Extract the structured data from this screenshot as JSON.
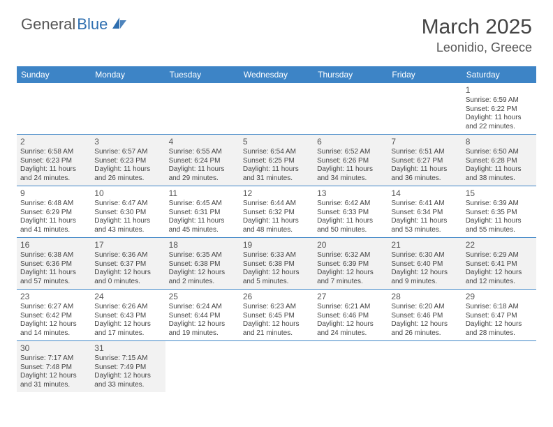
{
  "brand": {
    "part1": "General",
    "part2": "Blue"
  },
  "title": "March 2025",
  "location": "Leonidio, Greece",
  "colors": {
    "header_bg": "#3d84c6",
    "header_text": "#ffffff",
    "shaded_bg": "#f2f2f2",
    "border": "#3d84c6",
    "text": "#444444",
    "brand_accent": "#2f6fb0"
  },
  "day_names": [
    "Sunday",
    "Monday",
    "Tuesday",
    "Wednesday",
    "Thursday",
    "Friday",
    "Saturday"
  ],
  "weeks": [
    [
      {
        "blank": true
      },
      {
        "blank": true
      },
      {
        "blank": true
      },
      {
        "blank": true
      },
      {
        "blank": true
      },
      {
        "blank": true
      },
      {
        "day": "1",
        "sunrise": "Sunrise: 6:59 AM",
        "sunset": "Sunset: 6:22 PM",
        "daylight1": "Daylight: 11 hours",
        "daylight2": "and 22 minutes."
      }
    ],
    [
      {
        "day": "2",
        "sunrise": "Sunrise: 6:58 AM",
        "sunset": "Sunset: 6:23 PM",
        "daylight1": "Daylight: 11 hours",
        "daylight2": "and 24 minutes.",
        "shaded": true
      },
      {
        "day": "3",
        "sunrise": "Sunrise: 6:57 AM",
        "sunset": "Sunset: 6:23 PM",
        "daylight1": "Daylight: 11 hours",
        "daylight2": "and 26 minutes.",
        "shaded": true
      },
      {
        "day": "4",
        "sunrise": "Sunrise: 6:55 AM",
        "sunset": "Sunset: 6:24 PM",
        "daylight1": "Daylight: 11 hours",
        "daylight2": "and 29 minutes.",
        "shaded": true
      },
      {
        "day": "5",
        "sunrise": "Sunrise: 6:54 AM",
        "sunset": "Sunset: 6:25 PM",
        "daylight1": "Daylight: 11 hours",
        "daylight2": "and 31 minutes.",
        "shaded": true
      },
      {
        "day": "6",
        "sunrise": "Sunrise: 6:52 AM",
        "sunset": "Sunset: 6:26 PM",
        "daylight1": "Daylight: 11 hours",
        "daylight2": "and 34 minutes.",
        "shaded": true
      },
      {
        "day": "7",
        "sunrise": "Sunrise: 6:51 AM",
        "sunset": "Sunset: 6:27 PM",
        "daylight1": "Daylight: 11 hours",
        "daylight2": "and 36 minutes.",
        "shaded": true
      },
      {
        "day": "8",
        "sunrise": "Sunrise: 6:50 AM",
        "sunset": "Sunset: 6:28 PM",
        "daylight1": "Daylight: 11 hours",
        "daylight2": "and 38 minutes.",
        "shaded": true
      }
    ],
    [
      {
        "day": "9",
        "sunrise": "Sunrise: 6:48 AM",
        "sunset": "Sunset: 6:29 PM",
        "daylight1": "Daylight: 11 hours",
        "daylight2": "and 41 minutes."
      },
      {
        "day": "10",
        "sunrise": "Sunrise: 6:47 AM",
        "sunset": "Sunset: 6:30 PM",
        "daylight1": "Daylight: 11 hours",
        "daylight2": "and 43 minutes."
      },
      {
        "day": "11",
        "sunrise": "Sunrise: 6:45 AM",
        "sunset": "Sunset: 6:31 PM",
        "daylight1": "Daylight: 11 hours",
        "daylight2": "and 45 minutes."
      },
      {
        "day": "12",
        "sunrise": "Sunrise: 6:44 AM",
        "sunset": "Sunset: 6:32 PM",
        "daylight1": "Daylight: 11 hours",
        "daylight2": "and 48 minutes."
      },
      {
        "day": "13",
        "sunrise": "Sunrise: 6:42 AM",
        "sunset": "Sunset: 6:33 PM",
        "daylight1": "Daylight: 11 hours",
        "daylight2": "and 50 minutes."
      },
      {
        "day": "14",
        "sunrise": "Sunrise: 6:41 AM",
        "sunset": "Sunset: 6:34 PM",
        "daylight1": "Daylight: 11 hours",
        "daylight2": "and 53 minutes."
      },
      {
        "day": "15",
        "sunrise": "Sunrise: 6:39 AM",
        "sunset": "Sunset: 6:35 PM",
        "daylight1": "Daylight: 11 hours",
        "daylight2": "and 55 minutes."
      }
    ],
    [
      {
        "day": "16",
        "sunrise": "Sunrise: 6:38 AM",
        "sunset": "Sunset: 6:36 PM",
        "daylight1": "Daylight: 11 hours",
        "daylight2": "and 57 minutes.",
        "shaded": true
      },
      {
        "day": "17",
        "sunrise": "Sunrise: 6:36 AM",
        "sunset": "Sunset: 6:37 PM",
        "daylight1": "Daylight: 12 hours",
        "daylight2": "and 0 minutes.",
        "shaded": true
      },
      {
        "day": "18",
        "sunrise": "Sunrise: 6:35 AM",
        "sunset": "Sunset: 6:38 PM",
        "daylight1": "Daylight: 12 hours",
        "daylight2": "and 2 minutes.",
        "shaded": true
      },
      {
        "day": "19",
        "sunrise": "Sunrise: 6:33 AM",
        "sunset": "Sunset: 6:38 PM",
        "daylight1": "Daylight: 12 hours",
        "daylight2": "and 5 minutes.",
        "shaded": true
      },
      {
        "day": "20",
        "sunrise": "Sunrise: 6:32 AM",
        "sunset": "Sunset: 6:39 PM",
        "daylight1": "Daylight: 12 hours",
        "daylight2": "and 7 minutes.",
        "shaded": true
      },
      {
        "day": "21",
        "sunrise": "Sunrise: 6:30 AM",
        "sunset": "Sunset: 6:40 PM",
        "daylight1": "Daylight: 12 hours",
        "daylight2": "and 9 minutes.",
        "shaded": true
      },
      {
        "day": "22",
        "sunrise": "Sunrise: 6:29 AM",
        "sunset": "Sunset: 6:41 PM",
        "daylight1": "Daylight: 12 hours",
        "daylight2": "and 12 minutes.",
        "shaded": true
      }
    ],
    [
      {
        "day": "23",
        "sunrise": "Sunrise: 6:27 AM",
        "sunset": "Sunset: 6:42 PM",
        "daylight1": "Daylight: 12 hours",
        "daylight2": "and 14 minutes."
      },
      {
        "day": "24",
        "sunrise": "Sunrise: 6:26 AM",
        "sunset": "Sunset: 6:43 PM",
        "daylight1": "Daylight: 12 hours",
        "daylight2": "and 17 minutes."
      },
      {
        "day": "25",
        "sunrise": "Sunrise: 6:24 AM",
        "sunset": "Sunset: 6:44 PM",
        "daylight1": "Daylight: 12 hours",
        "daylight2": "and 19 minutes."
      },
      {
        "day": "26",
        "sunrise": "Sunrise: 6:23 AM",
        "sunset": "Sunset: 6:45 PM",
        "daylight1": "Daylight: 12 hours",
        "daylight2": "and 21 minutes."
      },
      {
        "day": "27",
        "sunrise": "Sunrise: 6:21 AM",
        "sunset": "Sunset: 6:46 PM",
        "daylight1": "Daylight: 12 hours",
        "daylight2": "and 24 minutes."
      },
      {
        "day": "28",
        "sunrise": "Sunrise: 6:20 AM",
        "sunset": "Sunset: 6:46 PM",
        "daylight1": "Daylight: 12 hours",
        "daylight2": "and 26 minutes."
      },
      {
        "day": "29",
        "sunrise": "Sunrise: 6:18 AM",
        "sunset": "Sunset: 6:47 PM",
        "daylight1": "Daylight: 12 hours",
        "daylight2": "and 28 minutes."
      }
    ],
    [
      {
        "day": "30",
        "sunrise": "Sunrise: 7:17 AM",
        "sunset": "Sunset: 7:48 PM",
        "daylight1": "Daylight: 12 hours",
        "daylight2": "and 31 minutes.",
        "shaded": true
      },
      {
        "day": "31",
        "sunrise": "Sunrise: 7:15 AM",
        "sunset": "Sunset: 7:49 PM",
        "daylight1": "Daylight: 12 hours",
        "daylight2": "and 33 minutes.",
        "shaded": true
      },
      {
        "blank": true
      },
      {
        "blank": true
      },
      {
        "blank": true
      },
      {
        "blank": true
      },
      {
        "blank": true
      }
    ]
  ]
}
